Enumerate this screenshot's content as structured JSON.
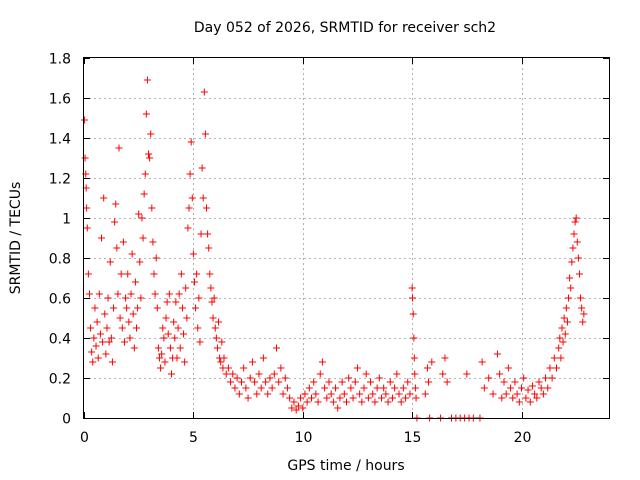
{
  "chart_data": {
    "type": "scatter",
    "title": "Day 052 of 2026, SRMTID for receiver sch2",
    "xlabel": "GPS time / hours",
    "ylabel": "SRMTID / TECUs",
    "xlim": [
      0,
      24
    ],
    "ylim": [
      0,
      1.8
    ],
    "xticks": [
      0,
      5,
      10,
      15,
      20
    ],
    "xtick_labels": [
      "0",
      "5",
      "10",
      "15",
      "20"
    ],
    "yticks": [
      0,
      0.2,
      0.4,
      0.6,
      0.8,
      1,
      1.2,
      1.4,
      1.6,
      1.8
    ],
    "ytick_labels": [
      "0",
      "0.2",
      "0.4",
      "0.6",
      "0.8",
      "1",
      "1.2",
      "1.4",
      "1.6",
      "1.8"
    ],
    "grid": true,
    "color": "#ff0000",
    "marker": "+",
    "series": [
      {
        "name": "SRMTID",
        "marker": "+",
        "points": [
          [
            0.02,
            1.49
          ],
          [
            0.05,
            1.3
          ],
          [
            0.08,
            1.22
          ],
          [
            0.1,
            1.15
          ],
          [
            0.12,
            1.05
          ],
          [
            0.15,
            0.95
          ],
          [
            0.2,
            0.72
          ],
          [
            0.25,
            0.62
          ],
          [
            0.3,
            0.45
          ],
          [
            0.35,
            0.33
          ],
          [
            0.4,
            0.28
          ],
          [
            0.45,
            0.4
          ],
          [
            0.5,
            0.55
          ],
          [
            0.55,
            0.36
          ],
          [
            0.6,
            0.48
          ],
          [
            0.65,
            0.3
          ],
          [
            0.7,
            0.62
          ],
          [
            0.75,
            0.42
          ],
          [
            0.8,
            0.9
          ],
          [
            0.85,
            0.38
          ],
          [
            0.9,
            1.1
          ],
          [
            0.95,
            0.52
          ],
          [
            1.0,
            0.32
          ],
          [
            1.05,
            0.45
          ],
          [
            1.1,
            0.6
          ],
          [
            1.15,
            0.38
          ],
          [
            1.2,
            0.78
          ],
          [
            1.25,
            0.4
          ],
          [
            1.3,
            0.28
          ],
          [
            1.35,
            0.55
          ],
          [
            1.4,
            0.98
          ],
          [
            1.45,
            1.07
          ],
          [
            1.5,
            0.85
          ],
          [
            1.55,
            0.62
          ],
          [
            1.6,
            1.35
          ],
          [
            1.65,
            0.5
          ],
          [
            1.7,
            0.72
          ],
          [
            1.75,
            0.45
          ],
          [
            1.8,
            0.88
          ],
          [
            1.85,
            0.38
          ],
          [
            1.9,
            0.6
          ],
          [
            1.95,
            0.55
          ],
          [
            2.0,
            0.72
          ],
          [
            2.05,
            0.48
          ],
          [
            2.1,
            0.4
          ],
          [
            2.15,
            0.62
          ],
          [
            2.2,
            0.82
          ],
          [
            2.25,
            0.52
          ],
          [
            2.3,
            0.35
          ],
          [
            2.35,
            0.68
          ],
          [
            2.4,
            0.45
          ],
          [
            2.45,
            0.55
          ],
          [
            2.5,
            1.02
          ],
          [
            2.55,
            0.78
          ],
          [
            2.6,
            0.6
          ],
          [
            2.65,
            1.0
          ],
          [
            2.7,
            0.9
          ],
          [
            2.75,
            1.12
          ],
          [
            2.8,
            1.22
          ],
          [
            2.85,
            1.52
          ],
          [
            2.9,
            1.69
          ],
          [
            2.95,
            1.32
          ],
          [
            3.0,
            1.3
          ],
          [
            3.05,
            1.42
          ],
          [
            3.1,
            1.05
          ],
          [
            3.15,
            0.88
          ],
          [
            3.2,
            0.72
          ],
          [
            3.25,
            0.62
          ],
          [
            3.3,
            0.8
          ],
          [
            3.35,
            0.55
          ],
          [
            3.4,
            0.35
          ],
          [
            3.45,
            0.3
          ],
          [
            3.5,
            0.25
          ],
          [
            3.55,
            0.32
          ],
          [
            3.6,
            0.45
          ],
          [
            3.65,
            0.4
          ],
          [
            3.7,
            0.28
          ],
          [
            3.75,
            0.5
          ],
          [
            3.8,
            0.58
          ],
          [
            3.85,
            0.42
          ],
          [
            3.9,
            0.62
          ],
          [
            3.95,
            0.35
          ],
          [
            4.0,
            0.22
          ],
          [
            4.05,
            0.3
          ],
          [
            4.1,
            0.48
          ],
          [
            4.15,
            0.4
          ],
          [
            4.2,
            0.58
          ],
          [
            4.25,
            0.3
          ],
          [
            4.3,
            0.45
          ],
          [
            4.35,
            0.62
          ],
          [
            4.4,
            0.35
          ],
          [
            4.45,
            0.72
          ],
          [
            4.5,
            0.55
          ],
          [
            4.55,
            0.42
          ],
          [
            4.6,
            0.28
          ],
          [
            4.65,
            0.65
          ],
          [
            4.7,
            0.5
          ],
          [
            4.75,
            0.95
          ],
          [
            4.8,
            1.05
          ],
          [
            4.85,
            1.22
          ],
          [
            4.9,
            1.38
          ],
          [
            4.95,
            1.1
          ],
          [
            5.0,
            0.82
          ],
          [
            5.05,
            0.68
          ],
          [
            5.1,
            0.55
          ],
          [
            5.15,
            0.72
          ],
          [
            5.2,
            0.45
          ],
          [
            5.25,
            0.6
          ],
          [
            5.3,
            0.38
          ],
          [
            5.35,
            0.92
          ],
          [
            5.4,
            1.25
          ],
          [
            5.45,
            1.1
          ],
          [
            5.5,
            1.63
          ],
          [
            5.55,
            1.42
          ],
          [
            5.6,
            1.05
          ],
          [
            5.65,
            0.92
          ],
          [
            5.7,
            0.85
          ],
          [
            5.75,
            0.72
          ],
          [
            5.8,
            0.65
          ],
          [
            5.85,
            0.58
          ],
          [
            5.9,
            0.5
          ],
          [
            5.95,
            0.6
          ],
          [
            6.0,
            0.45
          ],
          [
            6.05,
            0.4
          ],
          [
            6.1,
            0.35
          ],
          [
            6.15,
            0.48
          ],
          [
            6.2,
            0.3
          ],
          [
            6.25,
            0.28
          ],
          [
            6.3,
            0.38
          ],
          [
            6.35,
            0.25
          ],
          [
            6.4,
            0.3
          ],
          [
            6.5,
            0.22
          ],
          [
            6.6,
            0.25
          ],
          [
            6.7,
            0.18
          ],
          [
            6.8,
            0.22
          ],
          [
            6.9,
            0.15
          ],
          [
            7.0,
            0.2
          ],
          [
            7.1,
            0.12
          ],
          [
            7.2,
            0.18
          ],
          [
            7.3,
            0.25
          ],
          [
            7.4,
            0.15
          ],
          [
            7.5,
            0.1
          ],
          [
            7.6,
            0.2
          ],
          [
            7.7,
            0.28
          ],
          [
            7.8,
            0.18
          ],
          [
            7.9,
            0.12
          ],
          [
            8.0,
            0.22
          ],
          [
            8.1,
            0.15
          ],
          [
            8.2,
            0.3
          ],
          [
            8.3,
            0.18
          ],
          [
            8.4,
            0.12
          ],
          [
            8.5,
            0.2
          ],
          [
            8.6,
            0.15
          ],
          [
            8.7,
            0.22
          ],
          [
            8.8,
            0.35
          ],
          [
            8.9,
            0.18
          ],
          [
            9.0,
            0.25
          ],
          [
            9.1,
            0.12
          ],
          [
            9.2,
            0.2
          ],
          [
            9.3,
            0.15
          ],
          [
            9.4,
            0.1
          ],
          [
            9.5,
            0.05
          ],
          [
            9.6,
            0.08
          ],
          [
            9.7,
            0.04
          ],
          [
            9.8,
            0.06
          ],
          [
            9.9,
            0.1
          ],
          [
            10.0,
            0.05
          ],
          [
            10.1,
            0.12
          ],
          [
            10.2,
            0.08
          ],
          [
            10.3,
            0.15
          ],
          [
            10.4,
            0.1
          ],
          [
            10.5,
            0.18
          ],
          [
            10.6,
            0.12
          ],
          [
            10.7,
            0.08
          ],
          [
            10.8,
            0.22
          ],
          [
            10.9,
            0.28
          ],
          [
            11.0,
            0.15
          ],
          [
            11.1,
            0.1
          ],
          [
            11.2,
            0.18
          ],
          [
            11.3,
            0.12
          ],
          [
            11.4,
            0.08
          ],
          [
            11.5,
            0.15
          ],
          [
            11.6,
            0.05
          ],
          [
            11.7,
            0.1
          ],
          [
            11.8,
            0.18
          ],
          [
            11.9,
            0.12
          ],
          [
            12.0,
            0.08
          ],
          [
            12.1,
            0.2
          ],
          [
            12.2,
            0.15
          ],
          [
            12.3,
            0.1
          ],
          [
            12.4,
            0.18
          ],
          [
            12.5,
            0.25
          ],
          [
            12.6,
            0.12
          ],
          [
            12.7,
            0.08
          ],
          [
            12.8,
            0.15
          ],
          [
            12.9,
            0.22
          ],
          [
            13.0,
            0.1
          ],
          [
            13.1,
            0.18
          ],
          [
            13.2,
            0.12
          ],
          [
            13.3,
            0.08
          ],
          [
            13.4,
            0.15
          ],
          [
            13.5,
            0.2
          ],
          [
            13.6,
            0.1
          ],
          [
            13.7,
            0.15
          ],
          [
            13.8,
            0.12
          ],
          [
            13.9,
            0.08
          ],
          [
            14.0,
            0.18
          ],
          [
            14.1,
            0.1
          ],
          [
            14.2,
            0.15
          ],
          [
            14.3,
            0.22
          ],
          [
            14.4,
            0.12
          ],
          [
            14.5,
            0.08
          ],
          [
            14.6,
            0.15
          ],
          [
            14.7,
            0.1
          ],
          [
            14.8,
            0.18
          ],
          [
            14.9,
            0.12
          ],
          [
            15.0,
            0.65
          ],
          [
            15.02,
            0.6
          ],
          [
            15.05,
            0.52
          ],
          [
            15.08,
            0.4
          ],
          [
            15.1,
            0.3
          ],
          [
            15.12,
            0.22
          ],
          [
            15.15,
            0.15
          ],
          [
            15.18,
            0.1
          ],
          [
            15.22,
            0.0
          ],
          [
            15.6,
            0.12
          ],
          [
            15.7,
            0.25
          ],
          [
            15.75,
            0.18
          ],
          [
            15.8,
            0.0
          ],
          [
            15.9,
            0.28
          ],
          [
            16.3,
            0.0
          ],
          [
            16.4,
            0.22
          ],
          [
            16.5,
            0.3
          ],
          [
            16.6,
            0.18
          ],
          [
            16.8,
            0.0
          ],
          [
            17.0,
            0.0
          ],
          [
            17.2,
            0.0
          ],
          [
            17.4,
            0.0
          ],
          [
            17.5,
            0.22
          ],
          [
            17.6,
            0.0
          ],
          [
            17.8,
            0.0
          ],
          [
            18.1,
            0.0
          ],
          [
            18.2,
            0.28
          ],
          [
            18.3,
            0.15
          ],
          [
            18.5,
            0.2
          ],
          [
            18.7,
            0.12
          ],
          [
            18.9,
            0.32
          ],
          [
            19.0,
            0.22
          ],
          [
            19.1,
            0.1
          ],
          [
            19.2,
            0.18
          ],
          [
            19.3,
            0.12
          ],
          [
            19.4,
            0.25
          ],
          [
            19.5,
            0.15
          ],
          [
            19.6,
            0.1
          ],
          [
            19.7,
            0.18
          ],
          [
            19.8,
            0.12
          ],
          [
            19.9,
            0.08
          ],
          [
            20.0,
            0.15
          ],
          [
            20.1,
            0.2
          ],
          [
            20.2,
            0.1
          ],
          [
            20.3,
            0.14
          ],
          [
            20.4,
            0.08
          ],
          [
            20.5,
            0.16
          ],
          [
            20.6,
            0.12
          ],
          [
            20.7,
            0.1
          ],
          [
            20.8,
            0.18
          ],
          [
            20.9,
            0.15
          ],
          [
            21.0,
            0.12
          ],
          [
            21.1,
            0.2
          ],
          [
            21.2,
            0.15
          ],
          [
            21.3,
            0.25
          ],
          [
            21.4,
            0.2
          ],
          [
            21.5,
            0.3
          ],
          [
            21.6,
            0.25
          ],
          [
            21.7,
            0.35
          ],
          [
            21.75,
            0.4
          ],
          [
            21.8,
            0.3
          ],
          [
            21.85,
            0.45
          ],
          [
            21.9,
            0.38
          ],
          [
            21.95,
            0.5
          ],
          [
            22.0,
            0.42
          ],
          [
            22.05,
            0.55
          ],
          [
            22.1,
            0.48
          ],
          [
            22.15,
            0.6
          ],
          [
            22.2,
            0.7
          ],
          [
            22.25,
            0.65
          ],
          [
            22.3,
            0.78
          ],
          [
            22.35,
            0.85
          ],
          [
            22.4,
            0.92
          ],
          [
            22.45,
            0.98
          ],
          [
            22.5,
            1.0
          ],
          [
            22.55,
            0.88
          ],
          [
            22.6,
            0.8
          ],
          [
            22.65,
            0.72
          ],
          [
            22.7,
            0.6
          ],
          [
            22.75,
            0.55
          ],
          [
            22.8,
            0.48
          ],
          [
            22.85,
            0.52
          ]
        ]
      }
    ]
  }
}
